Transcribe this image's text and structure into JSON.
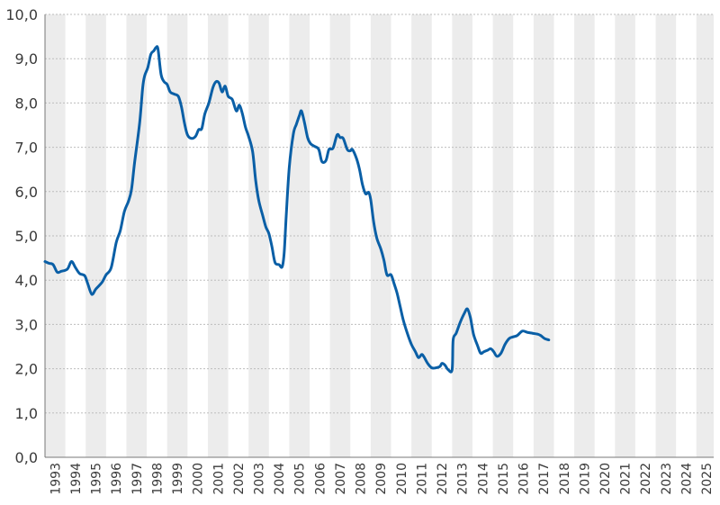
{
  "chart_data": {
    "type": "line",
    "title": "",
    "xlabel": "",
    "ylabel": "",
    "ylim": [
      0,
      10
    ],
    "xlim": [
      1993.0,
      2025.85
    ],
    "y_ticks": [
      "0,0",
      "1,0",
      "2,0",
      "3,0",
      "4,0",
      "5,0",
      "6,0",
      "7,0",
      "8,0",
      "9,0",
      "10,0"
    ],
    "x_ticks": [
      "1993",
      "1994",
      "1995",
      "1996",
      "1997",
      "1998",
      "1999",
      "2000",
      "2001",
      "2002",
      "2003",
      "2004",
      "2005",
      "2006",
      "2007",
      "2008",
      "2009",
      "2010",
      "2011",
      "2012",
      "2013",
      "2014",
      "2015",
      "2016",
      "2017",
      "2018",
      "2019",
      "2020",
      "2021",
      "2022",
      "2023",
      "2024",
      "2025"
    ],
    "grid": true,
    "alternating_year_bands": true,
    "colors": {
      "line": "#0a5fa6",
      "band": "#ececec",
      "grid": "#bdbdbd",
      "axis": "#777777",
      "text": "#3a3a3a"
    },
    "series": [
      {
        "values": [
          [
            1993.0,
            4.42
          ],
          [
            1993.2,
            4.38
          ],
          [
            1993.4,
            4.35
          ],
          [
            1993.6,
            4.18
          ],
          [
            1993.8,
            4.2
          ],
          [
            1994.1,
            4.25
          ],
          [
            1994.3,
            4.42
          ],
          [
            1994.5,
            4.28
          ],
          [
            1994.7,
            4.15
          ],
          [
            1994.95,
            4.1
          ],
          [
            1995.1,
            3.92
          ],
          [
            1995.3,
            3.68
          ],
          [
            1995.5,
            3.8
          ],
          [
            1995.8,
            3.95
          ],
          [
            1996.0,
            4.12
          ],
          [
            1996.25,
            4.28
          ],
          [
            1996.5,
            4.85
          ],
          [
            1996.7,
            5.12
          ],
          [
            1996.9,
            5.55
          ],
          [
            1997.1,
            5.78
          ],
          [
            1997.25,
            6.05
          ],
          [
            1997.4,
            6.65
          ],
          [
            1997.65,
            7.55
          ],
          [
            1997.8,
            8.35
          ],
          [
            1997.9,
            8.62
          ],
          [
            1998.05,
            8.8
          ],
          [
            1998.2,
            9.1
          ],
          [
            1998.35,
            9.18
          ],
          [
            1998.45,
            9.25
          ],
          [
            1998.55,
            9.22
          ],
          [
            1998.7,
            8.65
          ],
          [
            1998.85,
            8.48
          ],
          [
            1999.0,
            8.42
          ],
          [
            1999.15,
            8.25
          ],
          [
            1999.35,
            8.2
          ],
          [
            1999.55,
            8.15
          ],
          [
            1999.7,
            7.92
          ],
          [
            1999.85,
            7.55
          ],
          [
            2000.0,
            7.28
          ],
          [
            2000.2,
            7.2
          ],
          [
            2000.4,
            7.25
          ],
          [
            2000.55,
            7.4
          ],
          [
            2000.7,
            7.42
          ],
          [
            2000.85,
            7.75
          ],
          [
            2001.05,
            8.0
          ],
          [
            2001.25,
            8.35
          ],
          [
            2001.4,
            8.48
          ],
          [
            2001.55,
            8.45
          ],
          [
            2001.7,
            8.25
          ],
          [
            2001.85,
            8.38
          ],
          [
            2002.0,
            8.15
          ],
          [
            2002.2,
            8.08
          ],
          [
            2002.4,
            7.82
          ],
          [
            2002.55,
            7.95
          ],
          [
            2002.7,
            7.75
          ],
          [
            2002.85,
            7.45
          ],
          [
            2003.0,
            7.25
          ],
          [
            2003.2,
            6.9
          ],
          [
            2003.35,
            6.25
          ],
          [
            2003.5,
            5.8
          ],
          [
            2003.7,
            5.45
          ],
          [
            2003.85,
            5.2
          ],
          [
            2004.0,
            5.05
          ],
          [
            2004.15,
            4.75
          ],
          [
            2004.3,
            4.4
          ],
          [
            2004.5,
            4.35
          ],
          [
            2004.65,
            4.3
          ],
          [
            2004.75,
            4.62
          ],
          [
            2004.85,
            5.45
          ],
          [
            2005.0,
            6.55
          ],
          [
            2005.2,
            7.3
          ],
          [
            2005.35,
            7.52
          ],
          [
            2005.5,
            7.72
          ],
          [
            2005.6,
            7.82
          ],
          [
            2005.75,
            7.55
          ],
          [
            2005.9,
            7.22
          ],
          [
            2006.05,
            7.08
          ],
          [
            2006.25,
            7.02
          ],
          [
            2006.45,
            6.95
          ],
          [
            2006.6,
            6.68
          ],
          [
            2006.8,
            6.7
          ],
          [
            2006.95,
            6.95
          ],
          [
            2007.15,
            6.98
          ],
          [
            2007.35,
            7.28
          ],
          [
            2007.5,
            7.22
          ],
          [
            2007.65,
            7.2
          ],
          [
            2007.85,
            6.95
          ],
          [
            2008.0,
            6.92
          ],
          [
            2008.1,
            6.95
          ],
          [
            2008.3,
            6.75
          ],
          [
            2008.45,
            6.5
          ],
          [
            2008.6,
            6.15
          ],
          [
            2008.75,
            5.95
          ],
          [
            2008.9,
            5.98
          ],
          [
            2009.0,
            5.82
          ],
          [
            2009.15,
            5.3
          ],
          [
            2009.3,
            4.95
          ],
          [
            2009.5,
            4.7
          ],
          [
            2009.65,
            4.45
          ],
          [
            2009.8,
            4.12
          ],
          [
            2010.0,
            4.12
          ],
          [
            2010.15,
            3.92
          ],
          [
            2010.3,
            3.7
          ],
          [
            2010.45,
            3.4
          ],
          [
            2010.6,
            3.1
          ],
          [
            2010.8,
            2.8
          ],
          [
            2011.0,
            2.55
          ],
          [
            2011.2,
            2.38
          ],
          [
            2011.35,
            2.25
          ],
          [
            2011.5,
            2.32
          ],
          [
            2011.6,
            2.28
          ],
          [
            2011.8,
            2.12
          ],
          [
            2012.0,
            2.02
          ],
          [
            2012.2,
            2.02
          ],
          [
            2012.4,
            2.05
          ],
          [
            2012.5,
            2.12
          ],
          [
            2012.65,
            2.08
          ],
          [
            2012.8,
            1.98
          ],
          [
            2013.0,
            1.98
          ],
          [
            2013.05,
            2.65
          ],
          [
            2013.2,
            2.8
          ],
          [
            2013.4,
            3.05
          ],
          [
            2013.6,
            3.25
          ],
          [
            2013.75,
            3.35
          ],
          [
            2013.9,
            3.15
          ],
          [
            2014.05,
            2.78
          ],
          [
            2014.25,
            2.52
          ],
          [
            2014.4,
            2.35
          ],
          [
            2014.55,
            2.38
          ],
          [
            2014.75,
            2.42
          ],
          [
            2014.9,
            2.45
          ],
          [
            2015.05,
            2.38
          ],
          [
            2015.2,
            2.28
          ],
          [
            2015.4,
            2.35
          ],
          [
            2015.6,
            2.55
          ],
          [
            2015.8,
            2.68
          ],
          [
            2016.0,
            2.72
          ],
          [
            2016.2,
            2.75
          ],
          [
            2016.45,
            2.85
          ],
          [
            2016.7,
            2.82
          ],
          [
            2016.95,
            2.8
          ],
          [
            2017.2,
            2.78
          ],
          [
            2017.35,
            2.75
          ],
          [
            2017.55,
            2.68
          ],
          [
            2017.75,
            2.65
          ]
        ]
      }
    ]
  }
}
